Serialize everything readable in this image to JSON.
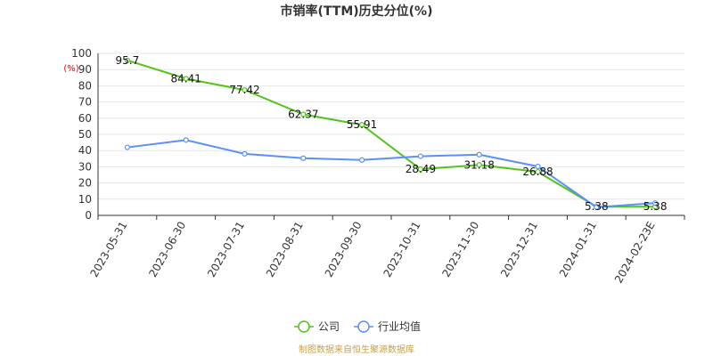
{
  "chart_data": {
    "type": "line",
    "title": "市销率(TTM)历史分位(%)",
    "y_unit": "(%)",
    "ylim": [
      0,
      100
    ],
    "yticks": [
      0,
      10,
      20,
      30,
      40,
      50,
      60,
      70,
      80,
      90,
      100
    ],
    "grid": true,
    "categories": [
      "2023-05-31",
      "2023-06-30",
      "2023-07-31",
      "2023-08-31",
      "2023-09-30",
      "2023-10-31",
      "2023-11-30",
      "2023-12-31",
      "2024-01-31",
      "2024-02-23E"
    ],
    "series": [
      {
        "name": "公司",
        "color": "#52c41a",
        "values": [
          95.7,
          84.41,
          77.42,
          62.37,
          55.91,
          28.49,
          31.18,
          26.88,
          5.38,
          5.38
        ],
        "labels": [
          "95.7",
          "84.41",
          "77.42",
          "62.37",
          "55.91",
          "28.49",
          "31.18",
          "26.88",
          "5.38",
          "5.38"
        ]
      },
      {
        "name": "行业均值",
        "color": "#5b8ff9",
        "values": [
          42,
          46.5,
          38,
          35.3,
          34.2,
          36.5,
          37.5,
          30.2,
          5.0,
          7.6
        ]
      }
    ],
    "legend_position": "bottom-center",
    "source": "制图数据来自恒生聚源数据库"
  }
}
